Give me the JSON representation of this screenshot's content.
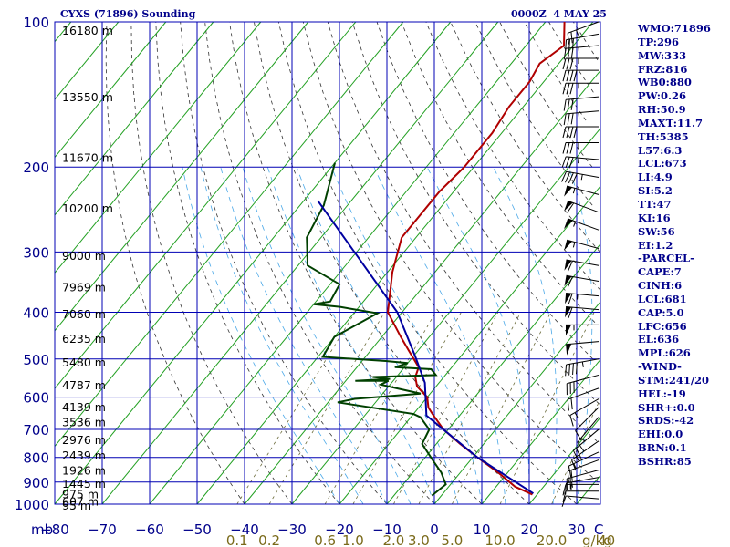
{
  "station_title": "CYXS (71896) Sounding",
  "valid_time": "0000Z  4 MAY 25",
  "stats": [
    "WMO:71896",
    "TP:296",
    "MW:333",
    "FRZ:816",
    "WB0:880",
    "PW:0.26",
    "RH:50.9",
    "MAXT:11.7",
    "TH:5385",
    "L57:6.3",
    "LCL:673",
    "LI:4.9",
    "SI:5.2",
    "TT:47",
    "KI:16",
    "SW:56",
    "EI:1.2",
    "-PARCEL-",
    "CAPE:7",
    "CINH:6",
    "LCL:681",
    "CAP:5.0",
    "LFC:656",
    "EL:636",
    "MPL:626",
    "-WIND-",
    "STM:241/20",
    "HEL:-19",
    "SHR+:0.0",
    "SRDS:-42",
    "EHI:0.0",
    "BRN:0.1",
    "BSHR:85"
  ],
  "chart_data": {
    "type": "line",
    "title": "CYXS (71896) Sounding",
    "xlabel": "",
    "ylabel": "mb",
    "x_axis_unit": "°C",
    "xlim": [
      -80,
      35
    ],
    "ylim": [
      1000,
      100
    ],
    "y_scale": "log",
    "grid": true,
    "pressure_ticks": [
      100,
      200,
      300,
      400,
      500,
      600,
      700,
      800,
      900,
      1000
    ],
    "temperature_ticks": [
      -80,
      -70,
      -60,
      -50,
      -40,
      -30,
      -20,
      -10,
      0,
      10,
      20,
      30
    ],
    "axis_prefix": "mb",
    "x_corner_label": "C",
    "mixing_ratio_ticks": [
      {
        "label": "0.1",
        "value": 0.1
      },
      {
        "label": "0.2",
        "value": 0.2
      },
      {
        "label": "0.6",
        "value": 0.6
      },
      {
        "label": "1.0",
        "value": 1.0
      },
      {
        "label": "2.0",
        "value": 2.0
      },
      {
        "label": "3.0",
        "value": 3.0
      },
      {
        "label": "5.0",
        "value": 5.0
      },
      {
        "label": "10.0",
        "value": 10.0
      },
      {
        "label": "20.0",
        "value": 20.0
      },
      {
        "label": "40",
        "value": 40
      }
    ],
    "mixing_ratio_unit": "g/kg",
    "heights": [
      {
        "p": 104,
        "label": "16180 m"
      },
      {
        "p": 143,
        "label": "13550 m"
      },
      {
        "p": 191,
        "label": "11670 m"
      },
      {
        "p": 243,
        "label": "10200 m"
      },
      {
        "p": 305,
        "label": "9000 m"
      },
      {
        "p": 354,
        "label": "7969 m"
      },
      {
        "p": 403,
        "label": "7060 m"
      },
      {
        "p": 453,
        "label": "6235 m"
      },
      {
        "p": 507,
        "label": "5480 m"
      },
      {
        "p": 565,
        "label": "4787 m"
      },
      {
        "p": 627,
        "label": "4139 m"
      },
      {
        "p": 674,
        "label": "3536 m"
      },
      {
        "p": 734,
        "label": "2976 m"
      },
      {
        "p": 790,
        "label": "2439 m"
      },
      {
        "p": 850,
        "label": "1926 m"
      },
      {
        "p": 905,
        "label": "1445 m"
      },
      {
        "p": 952,
        "label": "975 m"
      },
      {
        "p": 984,
        "label": "607 m"
      },
      {
        "p": 1015,
        "label": "95 m"
      }
    ],
    "series": [
      {
        "color": "#b00000",
        "points": [
          [
            -56,
            100
          ],
          [
            -52,
            112
          ],
          [
            -54,
            122
          ],
          [
            -53,
            133
          ],
          [
            -53,
            150
          ],
          [
            -52,
            170
          ],
          [
            -52,
            200
          ],
          [
            -53,
            225
          ],
          [
            -53,
            280
          ],
          [
            -49,
            330
          ],
          [
            -43,
            400
          ],
          [
            -36,
            450
          ],
          [
            -32,
            480
          ],
          [
            -27,
            520
          ],
          [
            -26,
            545
          ],
          [
            -24,
            570
          ],
          [
            -20,
            600
          ],
          [
            -18,
            630
          ],
          [
            -16,
            650
          ],
          [
            -11,
            700
          ],
          [
            -5,
            750
          ],
          [
            1,
            800
          ],
          [
            8,
            860
          ],
          [
            14,
            920
          ],
          [
            19,
            955
          ]
        ]
      },
      {
        "color": "#004000",
        "points": [
          [
            -80,
            196
          ],
          [
            -75,
            240
          ],
          [
            -73,
            280
          ],
          [
            -68,
            320
          ],
          [
            -58,
            350
          ],
          [
            -57,
            380
          ],
          [
            -60,
            385
          ],
          [
            -54,
            390
          ],
          [
            -45,
            402
          ],
          [
            -48,
            430
          ],
          [
            -50,
            450
          ],
          [
            -49,
            495
          ],
          [
            -35,
            505
          ],
          [
            -30,
            510
          ],
          [
            -32,
            520
          ],
          [
            -24,
            525
          ],
          [
            -22,
            540
          ],
          [
            -35,
            545
          ],
          [
            -31,
            550
          ],
          [
            -38,
            555
          ],
          [
            -31,
            555
          ],
          [
            -32,
            565
          ],
          [
            -28,
            575
          ],
          [
            -22,
            590
          ],
          [
            -35,
            605
          ],
          [
            -38,
            615
          ],
          [
            -20,
            650
          ],
          [
            -18,
            660
          ],
          [
            -14,
            700
          ],
          [
            -13,
            750
          ],
          [
            -8,
            810
          ],
          [
            -4,
            860
          ],
          [
            -1,
            910
          ],
          [
            -2,
            960
          ]
        ]
      },
      {
        "color": "#0000a0",
        "points": [
          [
            -77,
            235
          ],
          [
            -41,
            400
          ],
          [
            -30,
            490
          ],
          [
            -23,
            560
          ],
          [
            -17,
            655
          ],
          [
            1,
            800
          ],
          [
            19,
            950
          ]
        ]
      }
    ],
    "winds": [
      {
        "p": 100,
        "dir": 250,
        "spd": 25
      },
      {
        "p": 106,
        "dir": 260,
        "spd": 30
      },
      {
        "p": 112,
        "dir": 265,
        "spd": 35
      },
      {
        "p": 119,
        "dir": 270,
        "spd": 35
      },
      {
        "p": 126,
        "dir": 270,
        "spd": 40
      },
      {
        "p": 134,
        "dir": 270,
        "spd": 35
      },
      {
        "p": 143,
        "dir": 265,
        "spd": 30
      },
      {
        "p": 153,
        "dir": 265,
        "spd": 35
      },
      {
        "p": 165,
        "dir": 270,
        "spd": 40
      },
      {
        "p": 178,
        "dir": 270,
        "spd": 35
      },
      {
        "p": 193,
        "dir": 275,
        "spd": 35
      },
      {
        "p": 210,
        "dir": 280,
        "spd": 45
      },
      {
        "p": 228,
        "dir": 285,
        "spd": 55
      },
      {
        "p": 248,
        "dir": 290,
        "spd": 60
      },
      {
        "p": 270,
        "dir": 290,
        "spd": 55
      },
      {
        "p": 295,
        "dir": 285,
        "spd": 55
      },
      {
        "p": 320,
        "dir": 280,
        "spd": 60
      },
      {
        "p": 345,
        "dir": 280,
        "spd": 60
      },
      {
        "p": 370,
        "dir": 275,
        "spd": 65
      },
      {
        "p": 395,
        "dir": 275,
        "spd": 60
      },
      {
        "p": 425,
        "dir": 270,
        "spd": 55
      },
      {
        "p": 460,
        "dir": 265,
        "spd": 50
      },
      {
        "p": 500,
        "dir": 260,
        "spd": 45
      },
      {
        "p": 540,
        "dir": 255,
        "spd": 30
      },
      {
        "p": 575,
        "dir": 250,
        "spd": 20
      },
      {
        "p": 605,
        "dir": 240,
        "spd": 15
      },
      {
        "p": 630,
        "dir": 225,
        "spd": 10
      },
      {
        "p": 660,
        "dir": 220,
        "spd": 15
      },
      {
        "p": 700,
        "dir": 230,
        "spd": 20
      },
      {
        "p": 740,
        "dir": 235,
        "spd": 15
      },
      {
        "p": 780,
        "dir": 245,
        "spd": 15
      },
      {
        "p": 810,
        "dir": 250,
        "spd": 20
      },
      {
        "p": 850,
        "dir": 255,
        "spd": 20
      },
      {
        "p": 880,
        "dir": 260,
        "spd": 15
      },
      {
        "p": 910,
        "dir": 270,
        "spd": 15
      },
      {
        "p": 940,
        "dir": 270,
        "spd": 10
      },
      {
        "p": 975,
        "dir": 275,
        "spd": 10
      }
    ]
  }
}
